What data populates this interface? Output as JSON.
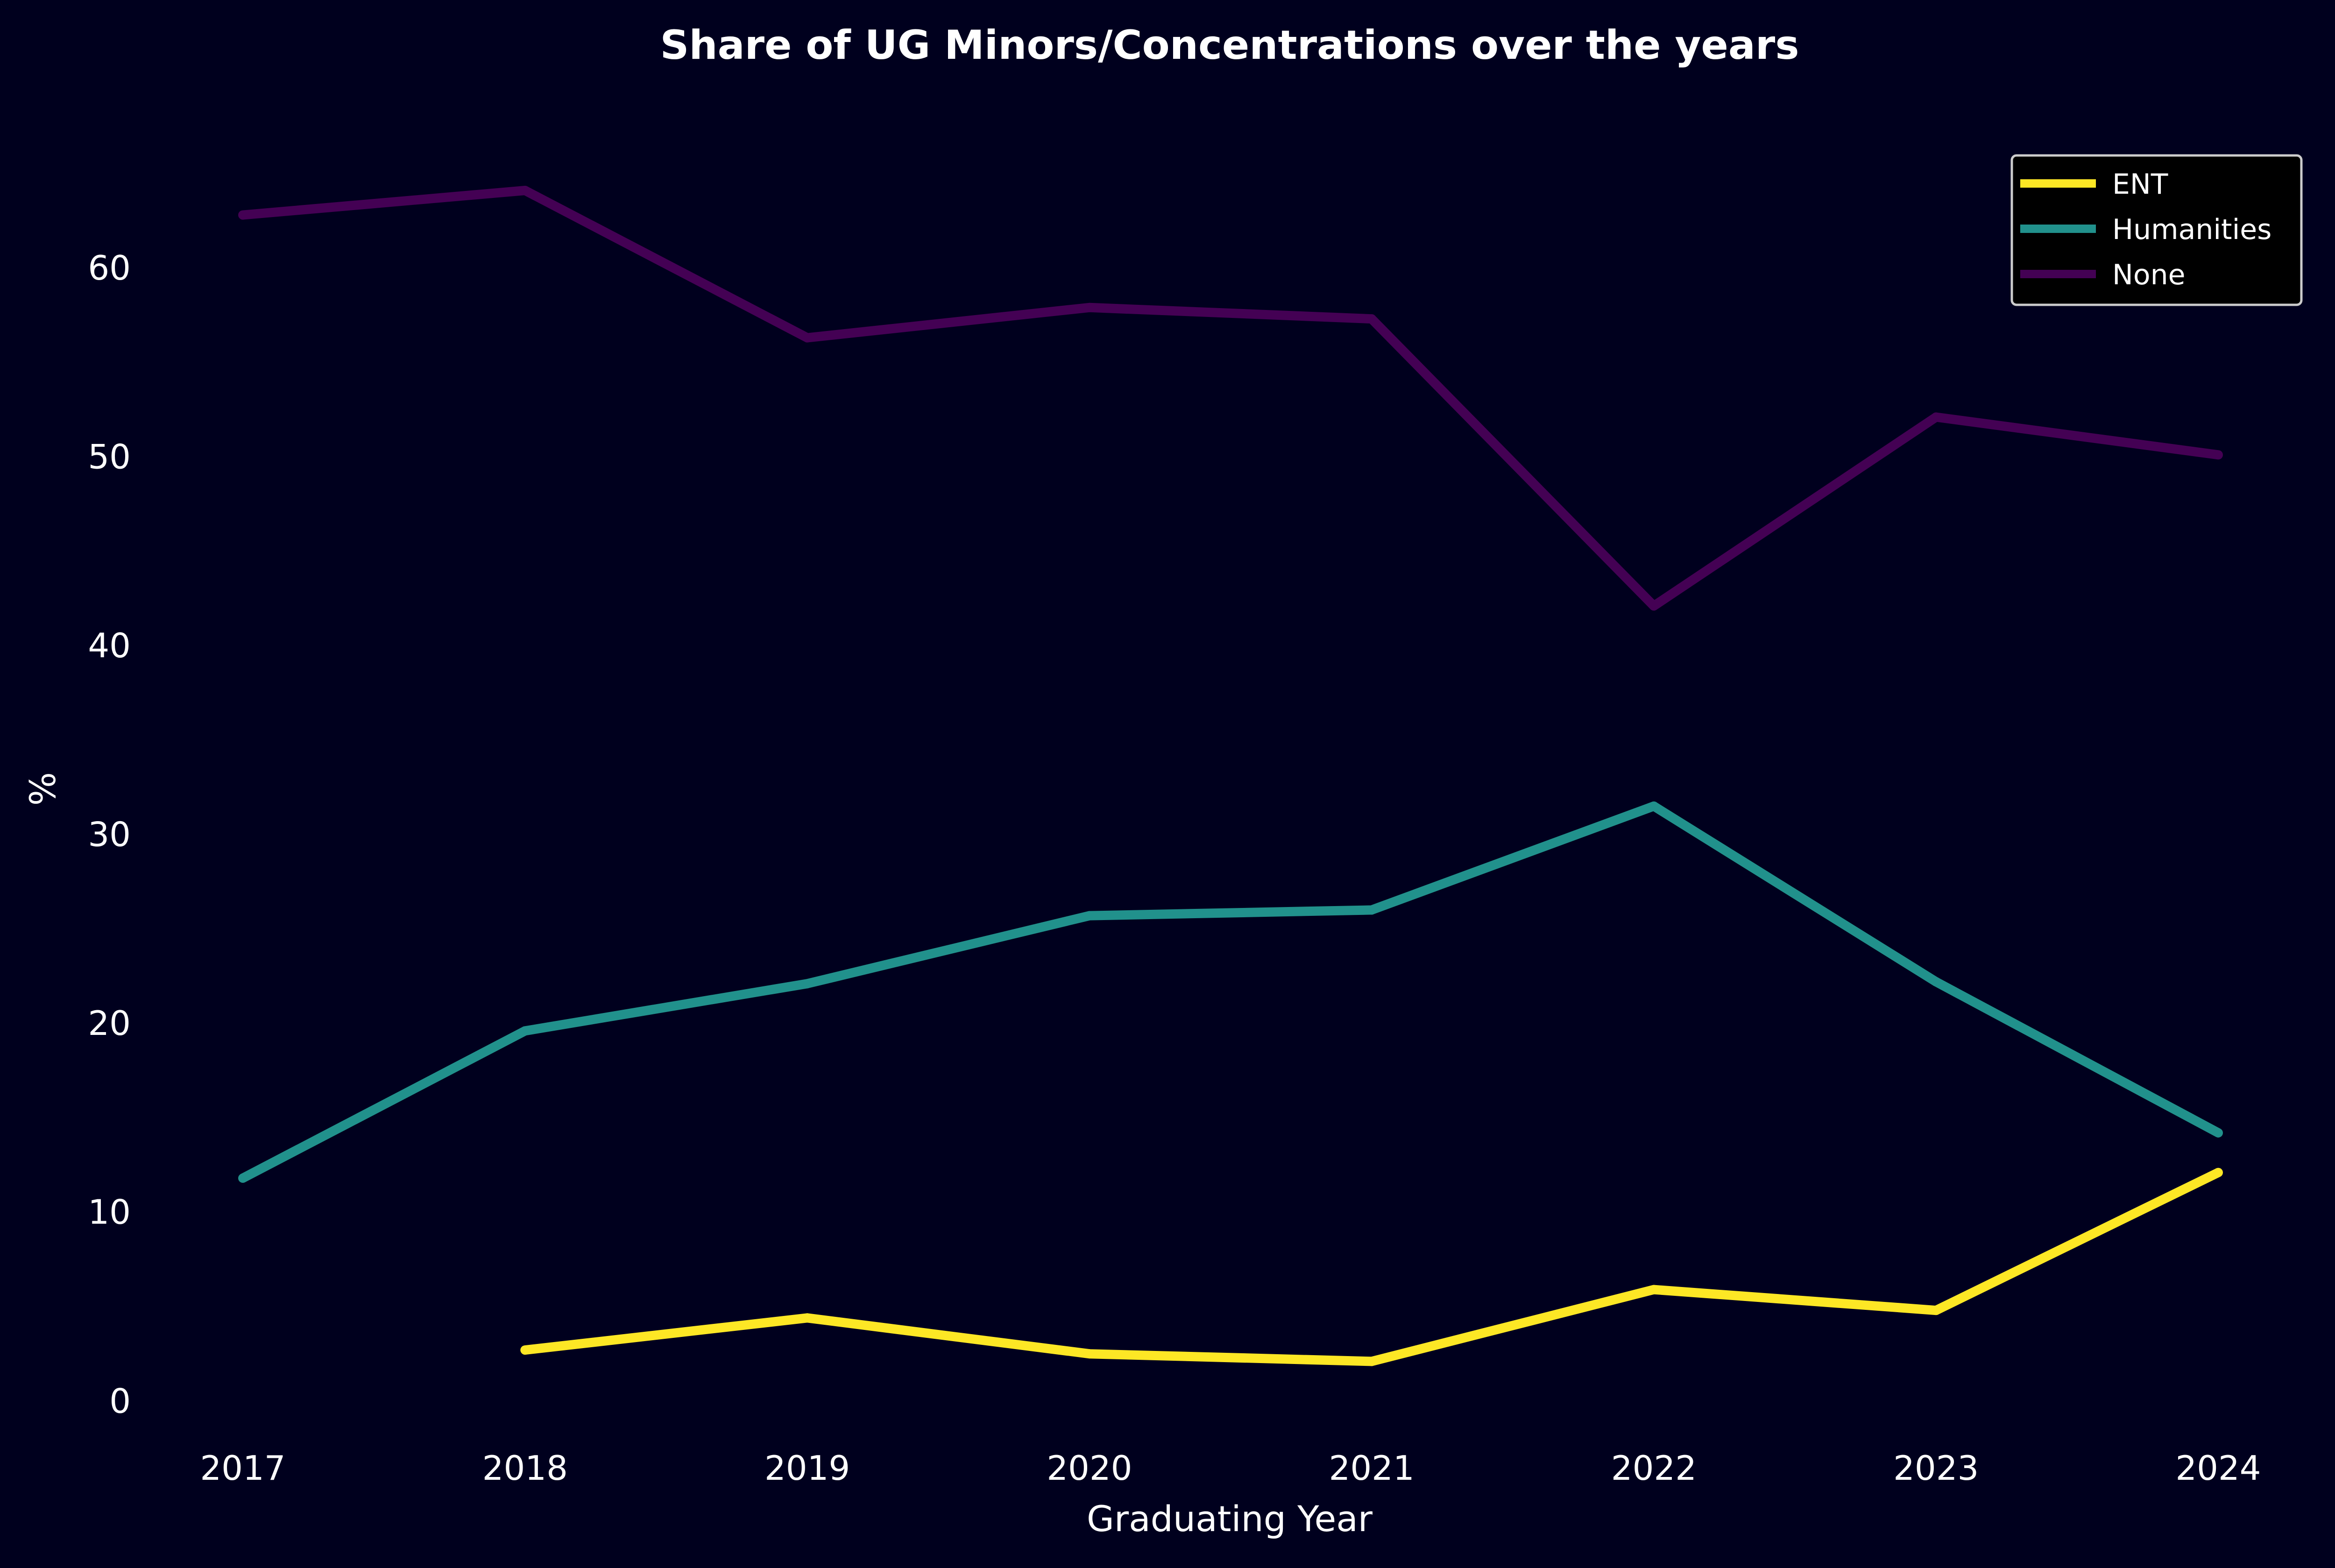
{
  "chart_data": {
    "type": "line",
    "title": "Share of UG Minors/Concentrations over the years",
    "xlabel": "Graduating Year",
    "ylabel": "%",
    "categories": [
      "2017",
      "2018",
      "2019",
      "2020",
      "2021",
      "2022",
      "2023",
      "2024"
    ],
    "y_ticks": [
      0,
      10,
      20,
      30,
      40,
      50,
      60
    ],
    "ylim": [
      -1.5,
      68.5
    ],
    "grid": false,
    "legend_position": "top-right",
    "background_color": "#00001e",
    "series": [
      {
        "name": "ENT",
        "color": "#fde725",
        "values": [
          null,
          2.7,
          4.4,
          2.5,
          2.1,
          5.9,
          4.8,
          12.1
        ]
      },
      {
        "name": "Humanities",
        "color": "#21918c",
        "values": [
          11.8,
          19.6,
          22.1,
          25.7,
          26.0,
          31.5,
          22.2,
          14.2
        ]
      },
      {
        "name": "None",
        "color": "#440154",
        "values": [
          62.8,
          64.1,
          56.3,
          57.9,
          57.3,
          42.1,
          52.1,
          50.1
        ]
      }
    ]
  }
}
